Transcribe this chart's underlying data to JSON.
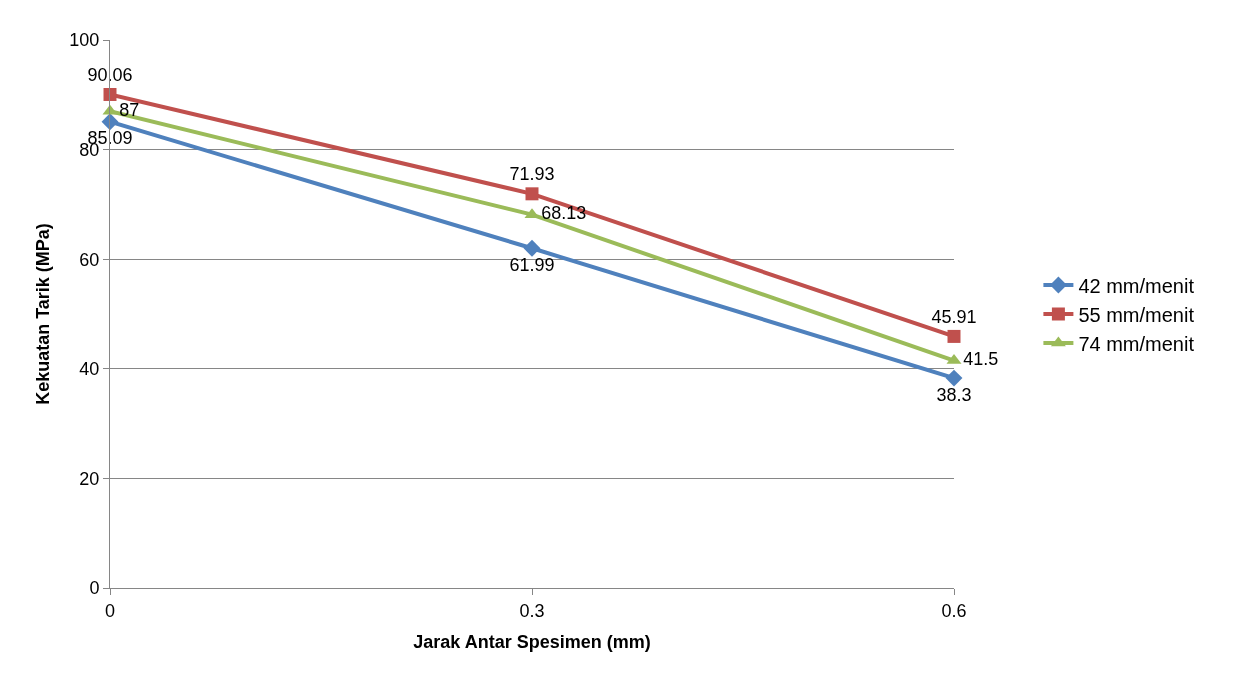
{
  "chart_data": {
    "type": "line",
    "xlabel": "Jarak Antar Spesimen (mm)",
    "ylabel": "Kekuatan Tarik (MPa)",
    "categories": [
      "0",
      "0.3",
      "0.6"
    ],
    "series": [
      {
        "name": "42 mm/menit",
        "color": "#4f81bd",
        "values": [
          85.09,
          61.99,
          38.3
        ],
        "marker": "diamond"
      },
      {
        "name": "55 mm/menit",
        "color": "#c0504d",
        "values": [
          90.06,
          71.93,
          45.91
        ],
        "marker": "square"
      },
      {
        "name": "74 mm/menit",
        "color": "#9bbb59",
        "values": [
          87,
          68.13,
          41.5
        ],
        "marker": "triangle"
      }
    ],
    "ylim": [
      0,
      100
    ],
    "yticks": [
      0,
      20,
      40,
      60,
      80,
      100
    ],
    "grid": "y",
    "legend": "right",
    "data_labels": true,
    "line_style": "solid"
  }
}
